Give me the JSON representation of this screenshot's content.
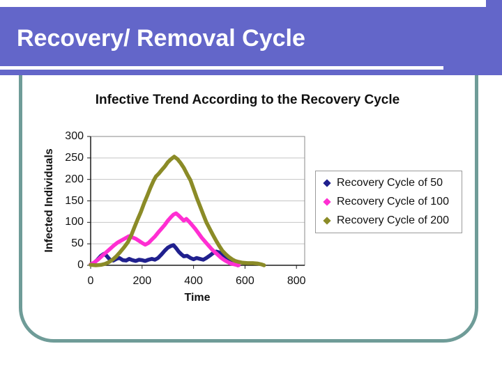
{
  "slide": {
    "title": "Recovery/ Removal Cycle"
  },
  "colors": {
    "title_bar": "#6366c9",
    "frame": "#6f9c98",
    "underline": "#ffffff",
    "gridline": "#c4c4c4",
    "plot_border": "#8a8a8a",
    "axis": "#1a1a1a"
  },
  "chart_data": {
    "type": "line",
    "title": "Infective Trend According to the Recovery Cycle",
    "xlabel": "Time",
    "ylabel": "Infected Individuals",
    "xlim": [
      0,
      832
    ],
    "ylim": [
      0,
      300
    ],
    "x_ticks": [
      0,
      200,
      400,
      600,
      800
    ],
    "y_ticks": [
      0,
      50,
      100,
      150,
      200,
      250,
      300
    ],
    "grid": "horizontal",
    "legend_position": "right",
    "series": [
      {
        "name": "Recovery Cycle of 50",
        "color": "#20208e",
        "marker": "diamond",
        "points": [
          [
            0,
            2
          ],
          [
            12,
            5
          ],
          [
            25,
            12
          ],
          [
            40,
            22
          ],
          [
            52,
            27
          ],
          [
            62,
            22
          ],
          [
            75,
            13
          ],
          [
            88,
            11
          ],
          [
            100,
            15
          ],
          [
            112,
            17
          ],
          [
            125,
            12
          ],
          [
            138,
            11
          ],
          [
            150,
            15
          ],
          [
            162,
            12
          ],
          [
            175,
            10
          ],
          [
            188,
            13
          ],
          [
            200,
            12
          ],
          [
            212,
            10
          ],
          [
            225,
            13
          ],
          [
            238,
            15
          ],
          [
            250,
            13
          ],
          [
            262,
            17
          ],
          [
            275,
            25
          ],
          [
            288,
            34
          ],
          [
            300,
            41
          ],
          [
            312,
            45
          ],
          [
            322,
            47
          ],
          [
            332,
            40
          ],
          [
            342,
            32
          ],
          [
            352,
            26
          ],
          [
            362,
            21
          ],
          [
            375,
            22
          ],
          [
            388,
            17
          ],
          [
            400,
            14
          ],
          [
            412,
            17
          ],
          [
            425,
            15
          ],
          [
            438,
            13
          ],
          [
            450,
            17
          ],
          [
            462,
            22
          ],
          [
            475,
            28
          ],
          [
            488,
            32
          ],
          [
            500,
            30
          ],
          [
            512,
            25
          ],
          [
            525,
            18
          ],
          [
            538,
            11
          ],
          [
            550,
            6
          ],
          [
            562,
            3
          ],
          [
            572,
            0
          ]
        ]
      },
      {
        "name": "Recovery Cycle of 100",
        "color": "#ff2ed2",
        "marker": "diamond",
        "points": [
          [
            0,
            2
          ],
          [
            15,
            7
          ],
          [
            30,
            14
          ],
          [
            45,
            22
          ],
          [
            60,
            30
          ],
          [
            75,
            38
          ],
          [
            90,
            46
          ],
          [
            105,
            53
          ],
          [
            120,
            58
          ],
          [
            135,
            63
          ],
          [
            150,
            68
          ],
          [
            162,
            65
          ],
          [
            175,
            62
          ],
          [
            188,
            57
          ],
          [
            200,
            52
          ],
          [
            212,
            48
          ],
          [
            225,
            52
          ],
          [
            238,
            60
          ],
          [
            250,
            67
          ],
          [
            262,
            76
          ],
          [
            275,
            85
          ],
          [
            288,
            94
          ],
          [
            300,
            104
          ],
          [
            312,
            112
          ],
          [
            322,
            118
          ],
          [
            332,
            121
          ],
          [
            342,
            116
          ],
          [
            352,
            110
          ],
          [
            362,
            104
          ],
          [
            372,
            108
          ],
          [
            382,
            102
          ],
          [
            395,
            93
          ],
          [
            408,
            84
          ],
          [
            420,
            74
          ],
          [
            432,
            64
          ],
          [
            445,
            55
          ],
          [
            458,
            46
          ],
          [
            470,
            38
          ],
          [
            482,
            31
          ],
          [
            495,
            24
          ],
          [
            508,
            17
          ],
          [
            520,
            12
          ],
          [
            532,
            8
          ],
          [
            545,
            4
          ],
          [
            560,
            2
          ],
          [
            575,
            0
          ]
        ]
      },
      {
        "name": "Recovery Cycle of 200",
        "color": "#8b8b27",
        "marker": "diamond",
        "points": [
          [
            0,
            1
          ],
          [
            20,
            0
          ],
          [
            40,
            1
          ],
          [
            55,
            3
          ],
          [
            70,
            7
          ],
          [
            85,
            13
          ],
          [
            100,
            21
          ],
          [
            115,
            31
          ],
          [
            130,
            42
          ],
          [
            145,
            54
          ],
          [
            158,
            70
          ],
          [
            170,
            88
          ],
          [
            182,
            106
          ],
          [
            195,
            124
          ],
          [
            208,
            145
          ],
          [
            220,
            162
          ],
          [
            232,
            180
          ],
          [
            244,
            196
          ],
          [
            254,
            207
          ],
          [
            264,
            213
          ],
          [
            275,
            221
          ],
          [
            288,
            230
          ],
          [
            300,
            240
          ],
          [
            312,
            247
          ],
          [
            325,
            253
          ],
          [
            338,
            247
          ],
          [
            350,
            238
          ],
          [
            362,
            227
          ],
          [
            375,
            212
          ],
          [
            388,
            198
          ],
          [
            400,
            178
          ],
          [
            412,
            158
          ],
          [
            425,
            138
          ],
          [
            438,
            118
          ],
          [
            450,
            100
          ],
          [
            462,
            86
          ],
          [
            475,
            71
          ],
          [
            488,
            57
          ],
          [
            500,
            45
          ],
          [
            512,
            34
          ],
          [
            525,
            26
          ],
          [
            538,
            19
          ],
          [
            550,
            14
          ],
          [
            562,
            10
          ],
          [
            575,
            8
          ],
          [
            590,
            6
          ],
          [
            610,
            5
          ],
          [
            630,
            5
          ],
          [
            650,
            4
          ],
          [
            665,
            2
          ],
          [
            674,
            0
          ]
        ]
      }
    ]
  }
}
